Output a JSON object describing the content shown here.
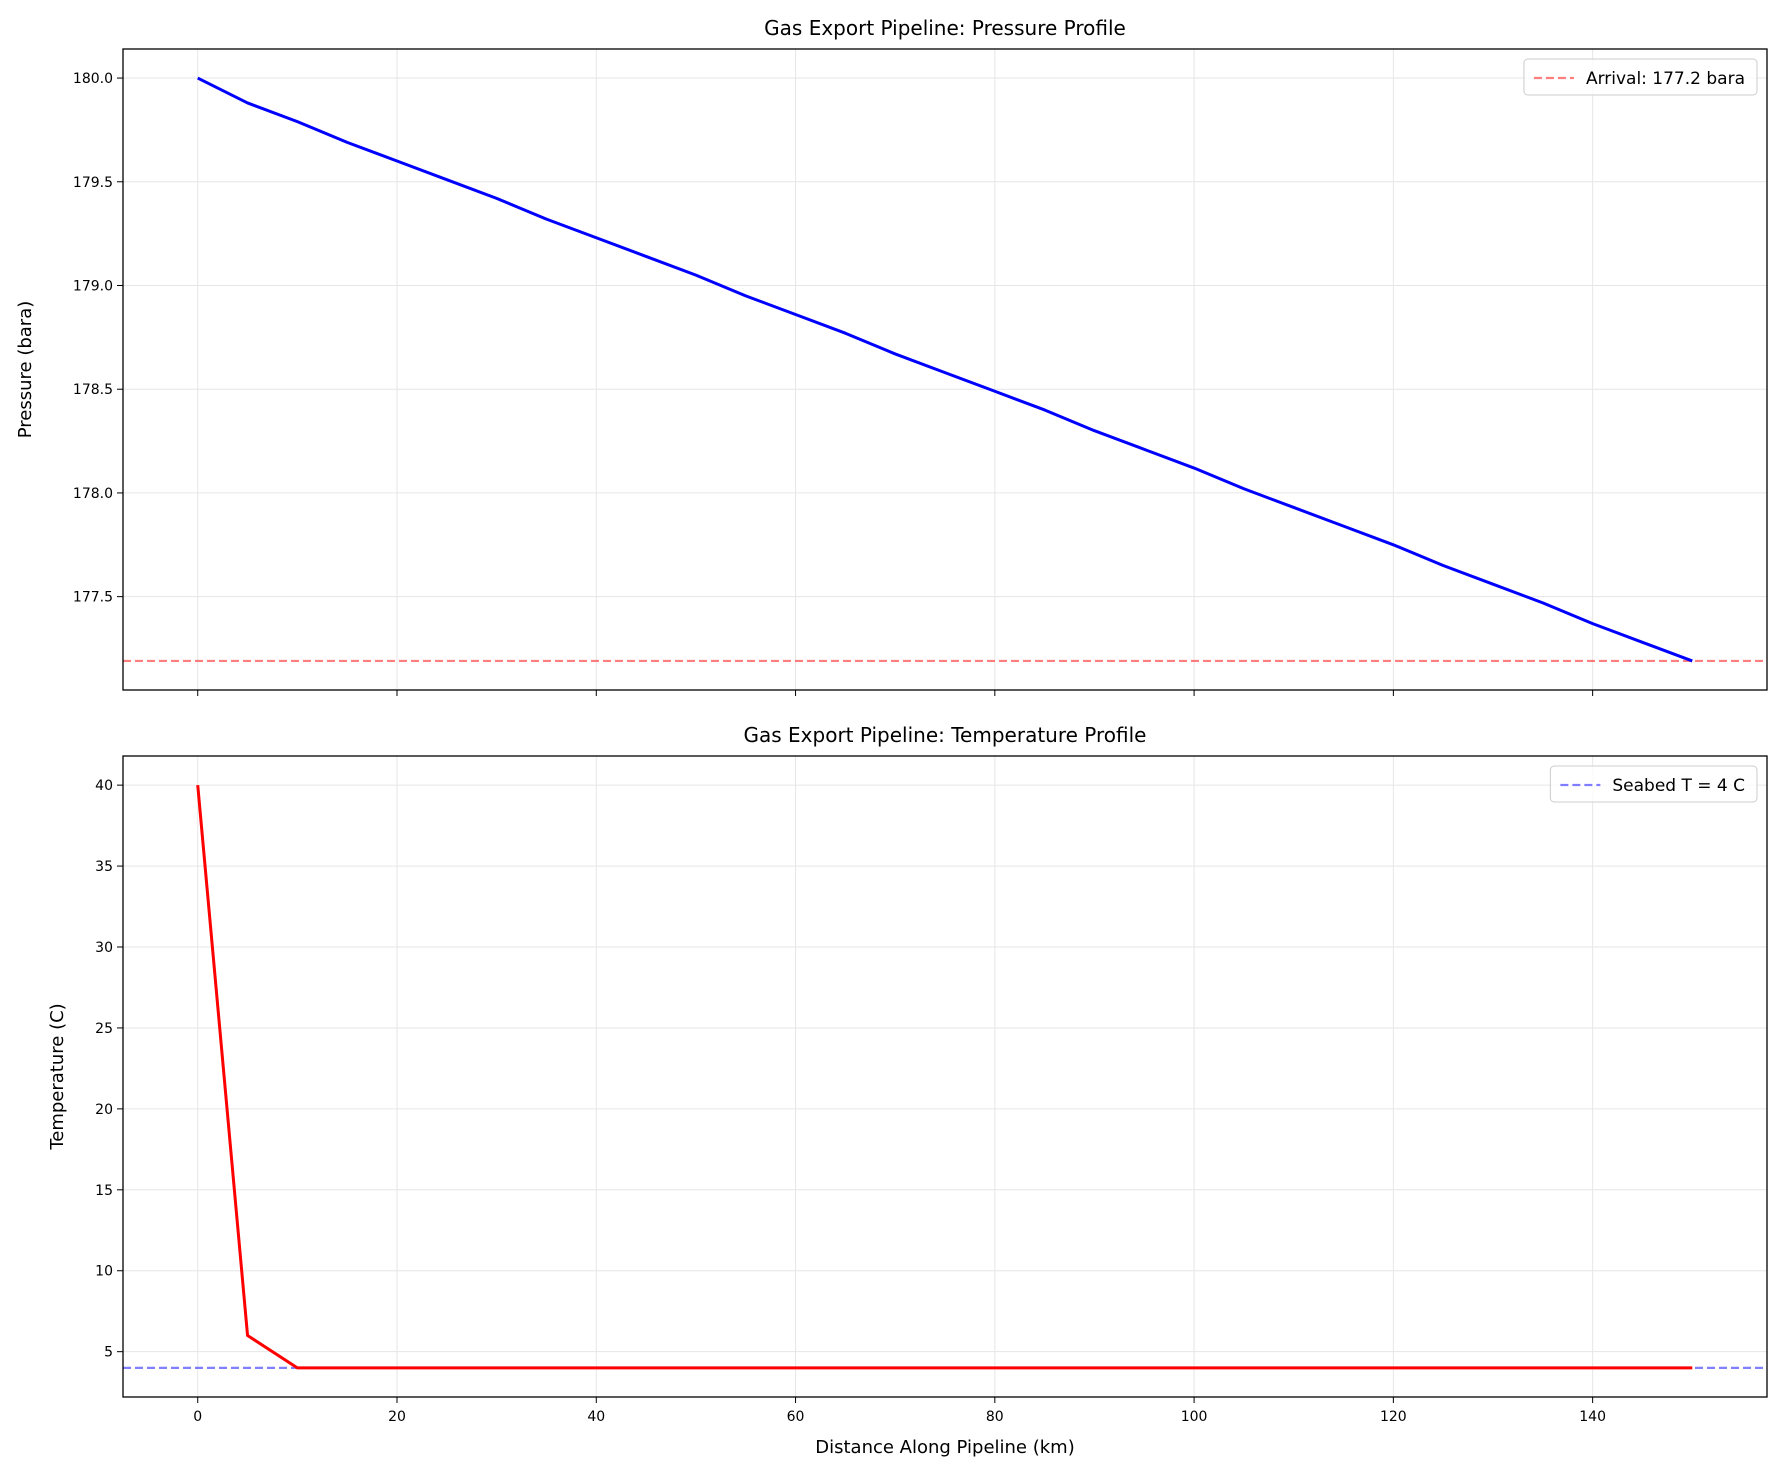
{
  "chart_data": [
    {
      "type": "line",
      "title": "Gas Export Pipeline: Pressure Profile",
      "ylabel": "Pressure (bara)",
      "x": [
        0,
        5,
        10,
        15,
        20,
        25,
        30,
        35,
        40,
        45,
        50,
        55,
        60,
        65,
        70,
        75,
        80,
        85,
        90,
        95,
        100,
        105,
        110,
        115,
        120,
        125,
        130,
        135,
        140,
        145,
        150
      ],
      "series": [
        {
          "color": "#0000ff",
          "values": [
            180.0,
            179.88,
            179.79,
            179.69,
            179.6,
            179.51,
            179.42,
            179.32,
            179.23,
            179.14,
            179.05,
            178.95,
            178.86,
            178.77,
            178.67,
            178.58,
            178.49,
            178.4,
            178.3,
            178.21,
            178.12,
            178.02,
            177.93,
            177.84,
            177.75,
            177.65,
            177.56,
            177.47,
            177.37,
            177.28,
            177.19
          ]
        }
      ],
      "reference_line": {
        "name": "Arrival: 177.2 bara",
        "value": 177.19,
        "color": "#ff0000",
        "opacity": 0.5
      },
      "xlim": [
        -7.5,
        157.5
      ],
      "xticks": [
        0,
        20,
        40,
        60,
        80,
        100,
        120,
        140
      ],
      "show_xtick_labels": false,
      "ylim": [
        177.05,
        180.14
      ],
      "yticks": [
        {
          "value": 177.5,
          "label": "177.5"
        },
        {
          "value": 178,
          "label": "178.0"
        },
        {
          "value": 178.5,
          "label": "178.5"
        },
        {
          "value": 179,
          "label": "179.0"
        },
        {
          "value": 179.5,
          "label": "179.5"
        },
        {
          "value": 180,
          "label": "180.0"
        }
      ],
      "grid": true,
      "legend": "upper right"
    },
    {
      "type": "line",
      "title": "Gas Export Pipeline: Temperature Profile",
      "ylabel": "Temperature (C)",
      "xlabel": "Distance Along Pipeline (km)",
      "x": [
        0,
        5,
        10,
        15,
        20,
        25,
        30,
        35,
        40,
        45,
        50,
        55,
        60,
        65,
        70,
        75,
        80,
        85,
        90,
        95,
        100,
        105,
        110,
        115,
        120,
        125,
        130,
        135,
        140,
        145,
        150
      ],
      "series": [
        {
          "color": "#ff0000",
          "values": [
            40,
            6,
            4,
            4,
            4,
            4,
            4,
            4,
            4,
            4,
            4,
            4,
            4,
            4,
            4,
            4,
            4,
            4,
            4,
            4,
            4,
            4,
            4,
            4,
            4,
            4,
            4,
            4,
            4,
            4,
            4
          ]
        }
      ],
      "reference_line": {
        "name": "Seabed T = 4 C",
        "value": 4,
        "color": "#0000ff",
        "opacity": 0.5
      },
      "xlim": [
        -7.5,
        157.5
      ],
      "xticks": [
        0,
        20,
        40,
        60,
        80,
        100,
        120,
        140
      ],
      "show_xtick_labels": true,
      "ylim": [
        2.2,
        41.8
      ],
      "yticks": [
        5,
        10,
        15,
        20,
        25,
        30,
        35,
        40
      ],
      "grid": true,
      "legend": "upper right"
    }
  ]
}
